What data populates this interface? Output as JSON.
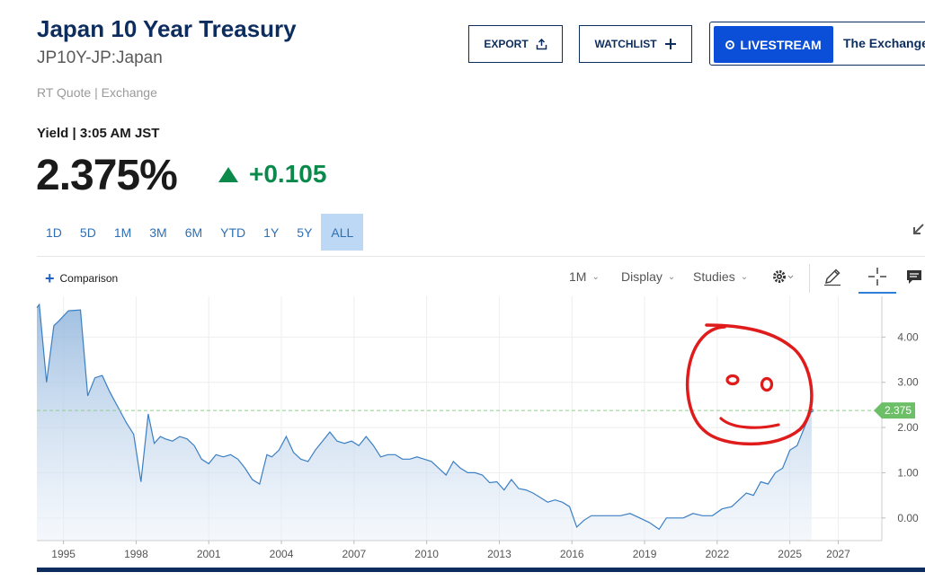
{
  "header": {
    "title": "Japan 10 Year Treasury",
    "symbol": "JP10Y-JP:Japan",
    "quote_source": "RT Quote | Exchange",
    "export_label": "EXPORT",
    "watchlist_label": "WATCHLIST",
    "livestream_label": "LIVESTREAM",
    "livestream_show": "The Exchange"
  },
  "quote": {
    "yield_line": "Yield | 3:05 AM JST",
    "price": "2.375%",
    "change": "+0.105"
  },
  "ranges": {
    "items": [
      "1D",
      "5D",
      "1M",
      "3M",
      "6M",
      "YTD",
      "1Y",
      "5Y",
      "ALL"
    ],
    "active": "ALL"
  },
  "toolbar": {
    "comparison_label": "Comparison",
    "interval_label": "1M",
    "display_label": "Display",
    "studies_label": "Studies"
  },
  "colors": {
    "title": "#0c2d5e",
    "accent_blue": "#0b4fd8",
    "positive": "#0b8a4b",
    "line": "#3b7fc4",
    "last_price_tag": "#6dbf67",
    "annotation": "#e01b1b"
  },
  "chart_data": {
    "type": "area",
    "title": "",
    "xlabel": "",
    "ylabel": "",
    "xlim": [
      1993.9,
      2028.8
    ],
    "ylim": [
      -0.5,
      4.9
    ],
    "x_ticks": [
      1995,
      1998,
      2001,
      2004,
      2007,
      2010,
      2013,
      2016,
      2019,
      2022,
      2025,
      2027
    ],
    "y_ticks": [
      4.0,
      3.0,
      2.0,
      1.0,
      0.0
    ],
    "y_tick_labels": [
      "4.00",
      "3.00",
      "2.00",
      "1.00",
      "0.00"
    ],
    "grid": true,
    "last_value_label": "2.375",
    "last_value": 2.375,
    "annotation": "hand-drawn smiley face",
    "series": [
      {
        "x": [
          1993.9,
          1994.0,
          1994.3,
          1994.6,
          1994.8,
          1995.2,
          1995.7,
          1996.0,
          1996.3,
          1996.6,
          1996.9,
          1997.3,
          1997.6,
          1997.9,
          1998.2,
          1998.5,
          1998.75,
          1999.0,
          1999.2,
          1999.5,
          1999.8,
          2000.1,
          2000.4,
          2000.7,
          2001.0,
          2001.3,
          2001.6,
          2001.9,
          2002.2,
          2002.5,
          2002.8,
          2003.1,
          2003.4,
          2003.6,
          2003.9,
          2004.2,
          2004.5,
          2004.8,
          2005.1,
          2005.4,
          2005.7,
          2006.0,
          2006.3,
          2006.6,
          2006.9,
          2007.2,
          2007.5,
          2007.8,
          2008.1,
          2008.4,
          2008.7,
          2009.0,
          2009.3,
          2009.6,
          2009.9,
          2010.2,
          2010.5,
          2010.8,
          2011.1,
          2011.4,
          2011.7,
          2012.0,
          2012.3,
          2012.6,
          2012.9,
          2013.2,
          2013.5,
          2013.8,
          2014.1,
          2014.4,
          2014.7,
          2015.0,
          2015.3,
          2015.6,
          2015.9,
          2016.2,
          2016.5,
          2016.8,
          2017.2,
          2017.6,
          2018.0,
          2018.4,
          2018.8,
          2019.2,
          2019.6,
          2019.9,
          2020.2,
          2020.6,
          2021.0,
          2021.4,
          2021.8,
          2022.2,
          2022.6,
          2022.9,
          2023.2,
          2023.5,
          2023.8,
          2024.1,
          2024.4,
          2024.7,
          2025.0,
          2025.3,
          2025.6,
          2025.9
        ],
        "y": [
          4.65,
          4.72,
          3.0,
          4.25,
          4.35,
          4.58,
          4.6,
          2.7,
          3.1,
          3.15,
          2.8,
          2.4,
          2.1,
          1.85,
          0.8,
          2.3,
          1.65,
          1.8,
          1.75,
          1.7,
          1.8,
          1.75,
          1.6,
          1.3,
          1.2,
          1.4,
          1.35,
          1.4,
          1.3,
          1.1,
          0.85,
          0.75,
          1.4,
          1.35,
          1.5,
          1.8,
          1.45,
          1.3,
          1.25,
          1.5,
          1.7,
          1.9,
          1.7,
          1.65,
          1.7,
          1.6,
          1.8,
          1.6,
          1.35,
          1.4,
          1.4,
          1.3,
          1.3,
          1.35,
          1.3,
          1.25,
          1.1,
          0.95,
          1.25,
          1.1,
          1.0,
          1.0,
          0.95,
          0.78,
          0.8,
          0.62,
          0.85,
          0.65,
          0.62,
          0.55,
          0.45,
          0.35,
          0.4,
          0.35,
          0.25,
          -0.2,
          -0.05,
          0.05,
          0.05,
          0.05,
          0.05,
          0.1,
          0.0,
          -0.1,
          -0.25,
          0.0,
          0.0,
          0.0,
          0.1,
          0.05,
          0.05,
          0.2,
          0.25,
          0.4,
          0.55,
          0.5,
          0.8,
          0.75,
          1.0,
          1.1,
          1.5,
          1.6,
          2.0,
          2.375
        ]
      }
    ]
  }
}
